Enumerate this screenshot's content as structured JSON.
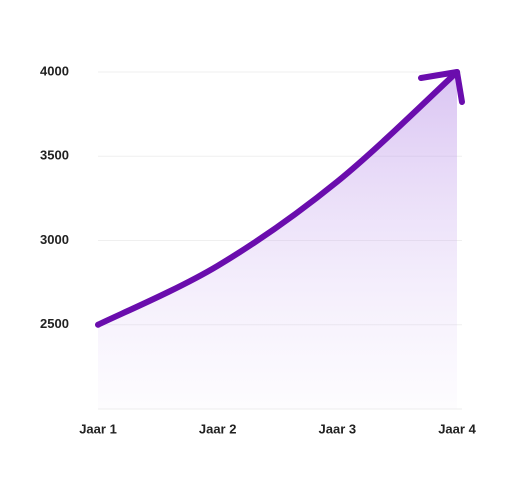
{
  "chart_data": {
    "type": "area",
    "categories": [
      "Jaar 1",
      "Jaar 2",
      "Jaar 3",
      "Jaar 4"
    ],
    "values": [
      2500,
      2850,
      3350,
      4000
    ],
    "color": "#6a0dad",
    "ylim": [
      2000,
      4000
    ],
    "yticks": [
      2500,
      3000,
      3500,
      4000
    ],
    "grid": true
  }
}
